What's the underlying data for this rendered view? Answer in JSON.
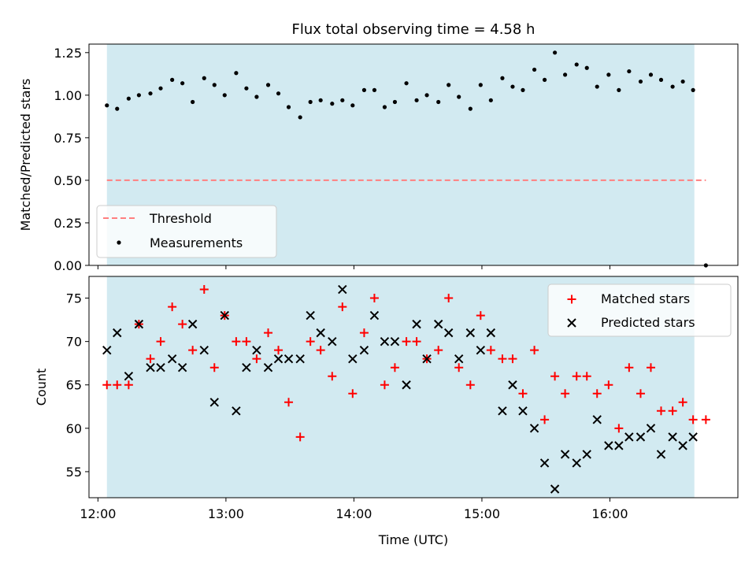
{
  "title": "Flux total observing time = 4.58 h",
  "colors": {
    "shade": "#add8e6",
    "threshold": "#ff7f7f",
    "matched": "#ff0000",
    "predicted": "#000000",
    "measurement": "#000000"
  },
  "chart_data": [
    {
      "type": "scatter",
      "panel": "top",
      "ylabel": "Matched/Predicted stars",
      "xlim": [
        11.93,
        17.0
      ],
      "ylim": [
        0.0,
        1.3
      ],
      "yticks": [
        0.0,
        0.25,
        0.5,
        0.75,
        1.0,
        1.25
      ],
      "ytick_labels": [
        "0.00",
        "0.25",
        "0.50",
        "0.75",
        "1.00",
        "1.25"
      ],
      "shaded_span": [
        12.07,
        16.66
      ],
      "threshold": {
        "name": "Threshold",
        "value": 0.5,
        "x_range": [
          12.07,
          16.75
        ]
      },
      "legend": [
        "Threshold",
        "Measurements"
      ],
      "legend_position": "lower-left",
      "series": [
        {
          "name": "Measurements",
          "x": [
            12.07,
            12.15,
            12.24,
            12.32,
            12.41,
            12.49,
            12.58,
            12.66,
            12.74,
            12.83,
            12.91,
            12.99,
            13.08,
            13.16,
            13.24,
            13.33,
            13.41,
            13.49,
            13.58,
            13.66,
            13.74,
            13.83,
            13.91,
            13.99,
            14.08,
            14.16,
            14.24,
            14.32,
            14.41,
            14.49,
            14.57,
            14.66,
            14.74,
            14.82,
            14.91,
            14.99,
            15.07,
            15.16,
            15.24,
            15.32,
            15.41,
            15.49,
            15.57,
            15.65,
            15.74,
            15.82,
            15.9,
            15.99,
            16.07,
            16.15,
            16.24,
            16.32,
            16.4,
            16.49,
            16.57,
            16.65,
            16.75
          ],
          "y": [
            0.94,
            0.92,
            0.98,
            1.0,
            1.01,
            1.04,
            1.09,
            1.07,
            0.96,
            1.1,
            1.06,
            1.0,
            1.13,
            1.04,
            0.99,
            1.06,
            1.01,
            0.93,
            0.87,
            0.96,
            0.97,
            0.95,
            0.97,
            0.94,
            1.03,
            1.03,
            0.93,
            0.96,
            1.07,
            0.97,
            1.0,
            0.96,
            1.06,
            0.99,
            0.92,
            1.06,
            0.97,
            1.1,
            1.05,
            1.03,
            1.15,
            1.09,
            1.25,
            1.12,
            1.18,
            1.16,
            1.05,
            1.12,
            1.03,
            1.14,
            1.08,
            1.12,
            1.09,
            1.05,
            1.08,
            1.03,
            0.0
          ]
        }
      ]
    },
    {
      "type": "scatter",
      "panel": "bottom",
      "xlabel": "Time (UTC)",
      "ylabel": "Count",
      "xlim": [
        11.93,
        17.0
      ],
      "ylim": [
        52,
        77.5
      ],
      "xticks": [
        12,
        13,
        14,
        15,
        16
      ],
      "xtick_labels": [
        "12:00",
        "13:00",
        "14:00",
        "15:00",
        "16:00"
      ],
      "yticks": [
        55,
        60,
        65,
        70,
        75
      ],
      "ytick_labels": [
        "55",
        "60",
        "65",
        "70",
        "75"
      ],
      "shaded_span": [
        12.07,
        16.66
      ],
      "legend": [
        "Matched stars",
        "Predicted stars"
      ],
      "legend_position": "upper-right",
      "series": [
        {
          "name": "Matched stars",
          "marker": "+",
          "x": [
            12.07,
            12.15,
            12.24,
            12.32,
            12.41,
            12.49,
            12.58,
            12.66,
            12.74,
            12.83,
            12.91,
            12.99,
            13.08,
            13.16,
            13.24,
            13.33,
            13.41,
            13.49,
            13.58,
            13.66,
            13.74,
            13.83,
            13.91,
            13.99,
            14.08,
            14.16,
            14.24,
            14.32,
            14.41,
            14.49,
            14.57,
            14.66,
            14.74,
            14.82,
            14.91,
            14.99,
            15.07,
            15.16,
            15.24,
            15.32,
            15.41,
            15.49,
            15.57,
            15.65,
            15.74,
            15.82,
            15.9,
            15.99,
            16.07,
            16.15,
            16.24,
            16.32,
            16.4,
            16.49,
            16.57,
            16.65,
            16.75
          ],
          "y": [
            65,
            65,
            65,
            72,
            68,
            70,
            74,
            72,
            69,
            76,
            67,
            73,
            70,
            70,
            68,
            71,
            69,
            63,
            59,
            70,
            69,
            66,
            74,
            64,
            71,
            75,
            65,
            67,
            70,
            70,
            68,
            69,
            75,
            67,
            65,
            73,
            69,
            68,
            68,
            64,
            69,
            61,
            66,
            64,
            66,
            66,
            64,
            65,
            60,
            67,
            64,
            67,
            62,
            62,
            63,
            61,
            61
          ]
        },
        {
          "name": "Predicted stars",
          "marker": "x",
          "x": [
            12.07,
            12.15,
            12.24,
            12.32,
            12.41,
            12.49,
            12.58,
            12.66,
            12.74,
            12.83,
            12.91,
            12.99,
            13.08,
            13.16,
            13.24,
            13.33,
            13.41,
            13.49,
            13.58,
            13.66,
            13.74,
            13.83,
            13.91,
            13.99,
            14.08,
            14.16,
            14.24,
            14.32,
            14.41,
            14.49,
            14.57,
            14.66,
            14.74,
            14.82,
            14.91,
            14.99,
            15.07,
            15.16,
            15.24,
            15.32,
            15.41,
            15.49,
            15.57,
            15.65,
            15.74,
            15.82,
            15.9,
            15.99,
            16.07,
            16.15,
            16.24,
            16.32,
            16.4,
            16.49,
            16.57,
            16.65
          ],
          "y": [
            69,
            71,
            66,
            72,
            67,
            67,
            68,
            67,
            72,
            69,
            63,
            73,
            62,
            67,
            69,
            67,
            68,
            68,
            68,
            73,
            71,
            70,
            76,
            68,
            69,
            73,
            70,
            70,
            65,
            72,
            68,
            72,
            71,
            68,
            71,
            69,
            71,
            62,
            65,
            62,
            60,
            56,
            53,
            57,
            56,
            57,
            61,
            58,
            58,
            59,
            59,
            60,
            57,
            59,
            58,
            59
          ]
        }
      ]
    }
  ]
}
